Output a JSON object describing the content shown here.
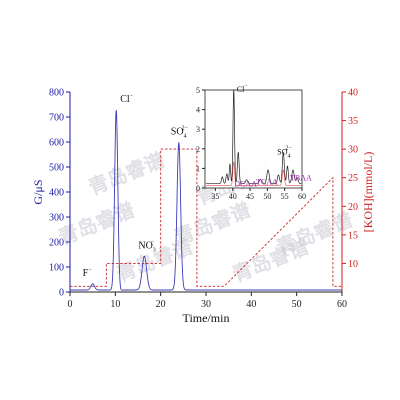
{
  "watermark": "青岛睿谱",
  "chart_data": {
    "type": "line",
    "xlabel": "Time/min",
    "ylabel_left": "G/μS",
    "ylabel_right": "[KOH](mmol/L)",
    "xlim": [
      0,
      60
    ],
    "ylim_left": [
      0,
      800
    ],
    "ylim_right": [
      5,
      40
    ],
    "x_ticks": [
      "0",
      "10",
      "20",
      "30",
      "40",
      "50",
      "60"
    ],
    "y_ticks_left": [
      "0",
      "100",
      "200",
      "300",
      "400",
      "500",
      "600",
      "700",
      "800"
    ],
    "y_ticks_right": [
      "10",
      "15",
      "20",
      "25",
      "30",
      "35",
      "40"
    ],
    "peaks": [
      {
        "label": "F",
        "sup": "−",
        "sub": "",
        "t": 5.0,
        "height": 25,
        "width": 0.4
      },
      {
        "label": "Cl",
        "sup": "−",
        "sub": "",
        "t": 10.2,
        "height": 720,
        "width": 0.35
      },
      {
        "label": "NO",
        "sup": "−",
        "sub": "3",
        "t": 16.4,
        "height": 135,
        "width": 0.5
      },
      {
        "label": "SO",
        "sup": "2−",
        "sub": "4",
        "t": 24.0,
        "height": 590,
        "width": 0.4
      }
    ],
    "koh_gradient": {
      "x": [
        0,
        8,
        8,
        20,
        20,
        28,
        28,
        34,
        58,
        58,
        60
      ],
      "y": [
        6,
        6,
        10,
        10,
        30,
        30,
        6,
        6,
        25,
        6,
        6
      ]
    },
    "inset": {
      "xlim": [
        32,
        60
      ],
      "ylim": [
        0,
        5
      ],
      "x_ticks": [
        "35",
        "40",
        "45",
        "50",
        "55",
        "60"
      ],
      "y_ticks": [
        "0",
        "1",
        "2",
        "3",
        "4",
        "5"
      ],
      "peaks": [
        {
          "label": "Cl",
          "sup": "−",
          "sub": "",
          "t": 40.3,
          "height": 4.8,
          "width": 0.22,
          "color": "#111111"
        },
        {
          "label": "DCAA",
          "sup": "",
          "sub": "",
          "t": 41.6,
          "height": 1.6,
          "width": 0.25,
          "color": "#9a2aa8"
        },
        {
          "label": "TCAA",
          "sup": "",
          "sub": "",
          "t": 50.2,
          "height": 0.7,
          "width": 0.35,
          "color": "#9a2aa8"
        },
        {
          "label": "SO",
          "sup": "2−",
          "sub": "4",
          "t": 54.6,
          "height": 1.6,
          "width": 0.28,
          "color": "#111111"
        },
        {
          "label": "TBAA",
          "sup": "",
          "sub": "",
          "t": 57.4,
          "height": 0.7,
          "width": 0.35,
          "color": "#9a2aa8"
        }
      ]
    }
  }
}
